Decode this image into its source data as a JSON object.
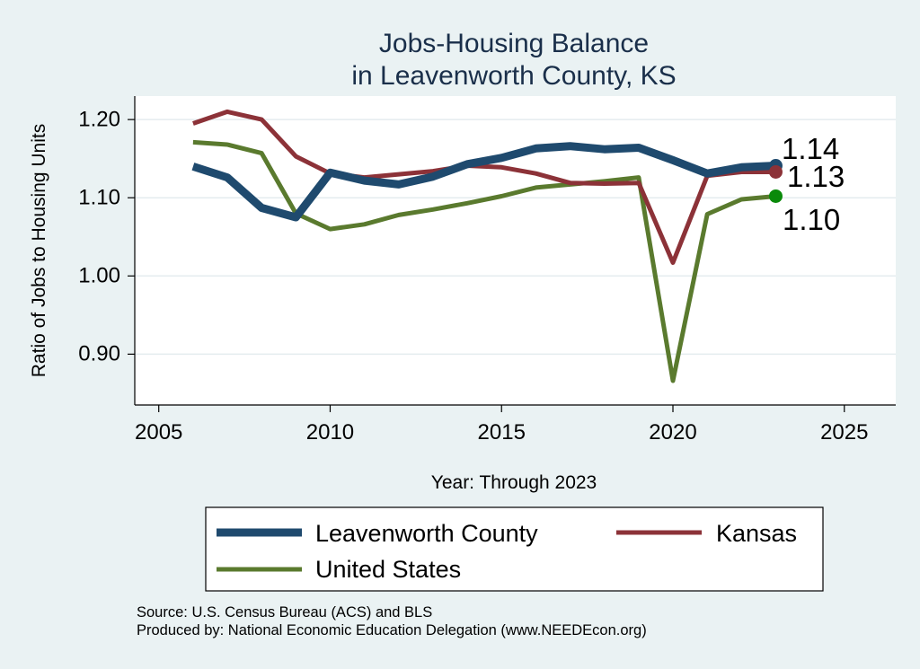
{
  "chart_data": {
    "type": "line",
    "title": [
      "Jobs-Housing Balance",
      "in Leavenworth County, KS"
    ],
    "xlabel": "Year: Through 2023",
    "ylabel": "Ratio of Jobs to Housing Units",
    "xlim": [
      2004.3,
      2026.5
    ],
    "ylim": [
      0.835,
      1.23
    ],
    "x_ticks": [
      2005,
      2010,
      2015,
      2020,
      2025
    ],
    "x_tick_labels": [
      "2005",
      "2010",
      "2015",
      "2020",
      "2025"
    ],
    "y_ticks": [
      0.9,
      1.0,
      1.1,
      1.2
    ],
    "y_tick_labels": [
      "0.90",
      "1.00",
      "1.10",
      "1.20"
    ],
    "grid": true,
    "series": [
      {
        "name": "Leavenworth County",
        "color": "#1f4a6e",
        "end_label": "1.14",
        "x": [
          2006,
          2007,
          2008,
          2009,
          2010,
          2011,
          2012,
          2013,
          2014,
          2015,
          2016,
          2017,
          2018,
          2019,
          2020,
          2021,
          2022,
          2023
        ],
        "y": [
          1.14,
          1.126,
          1.087,
          1.075,
          1.132,
          1.122,
          1.117,
          1.127,
          1.143,
          1.151,
          1.163,
          1.166,
          1.162,
          1.164,
          1.148,
          1.131,
          1.139,
          1.141
        ]
      },
      {
        "name": "Kansas",
        "color": "#8c3238",
        "end_label": "1.13",
        "x": [
          2006,
          2007,
          2008,
          2009,
          2010,
          2011,
          2012,
          2013,
          2014,
          2015,
          2016,
          2017,
          2018,
          2019,
          2020,
          2021,
          2022,
          2023
        ],
        "y": [
          1.195,
          1.21,
          1.2,
          1.153,
          1.131,
          1.126,
          1.13,
          1.134,
          1.141,
          1.139,
          1.131,
          1.119,
          1.118,
          1.119,
          1.017,
          1.128,
          1.133,
          1.133
        ]
      },
      {
        "name": "United States",
        "color": "#5a7a2e",
        "end_label": "1.10",
        "marker_color": "#0a8a0a",
        "x": [
          2006,
          2007,
          2008,
          2009,
          2010,
          2011,
          2012,
          2013,
          2014,
          2015,
          2016,
          2017,
          2018,
          2019,
          2020,
          2021,
          2022,
          2023
        ],
        "y": [
          1.171,
          1.168,
          1.157,
          1.08,
          1.06,
          1.066,
          1.078,
          1.085,
          1.093,
          1.102,
          1.113,
          1.117,
          1.121,
          1.126,
          0.866,
          1.079,
          1.098,
          1.102
        ]
      }
    ],
    "legend": {
      "placement": "bottom",
      "entries": [
        "Leavenworth County",
        "Kansas",
        "United States"
      ]
    }
  },
  "footer": {
    "source": "Source: U.S. Census Bureau (ACS) and BLS",
    "produced_by": "Produced by: National Economic Education Delegation (www.NEEDEcon.org)"
  }
}
